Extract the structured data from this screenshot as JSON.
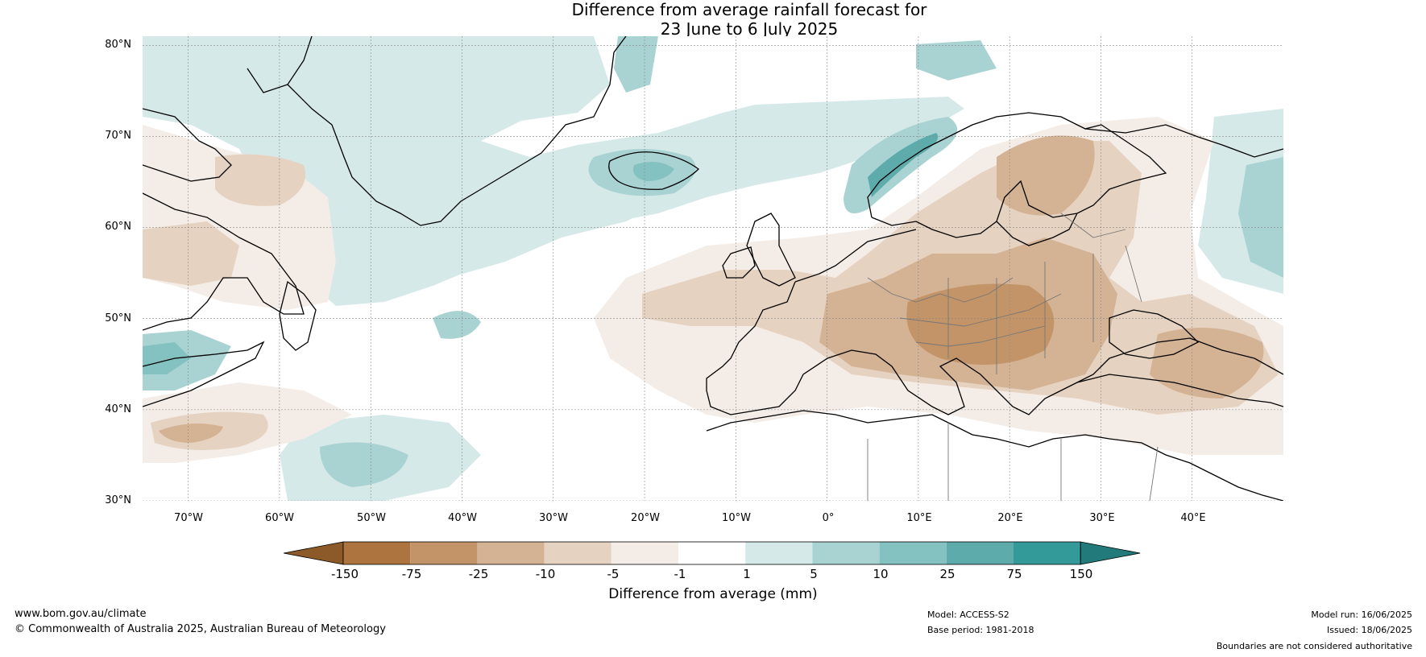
{
  "title": {
    "line1": "Difference from average rainfall forecast for",
    "line2": "23 June to 6 July 2025"
  },
  "map": {
    "lon_range": [
      -75,
      50
    ],
    "lat_range": [
      30,
      81
    ],
    "lat_labels": [
      "80°N",
      "70°N",
      "60°N",
      "50°N",
      "40°N",
      "30°N"
    ],
    "lat_values": [
      80,
      70,
      60,
      50,
      40,
      30
    ],
    "lon_labels": [
      "70°W",
      "60°W",
      "50°W",
      "40°W",
      "30°W",
      "20°W",
      "10°W",
      "0°",
      "10°E",
      "20°E",
      "30°E",
      "40°E"
    ],
    "lon_values": [
      -70,
      -60,
      -50,
      -40,
      -30,
      -20,
      -10,
      0,
      10,
      20,
      30,
      40
    ]
  },
  "colorbar": {
    "tick_labels": [
      "-150",
      "-75",
      "-25",
      "-10",
      "-5",
      "-1",
      "1",
      "5",
      "10",
      "25",
      "75",
      "150"
    ],
    "colors": [
      "#8c5a28",
      "#ad7440",
      "#c29467",
      "#d4b294",
      "#e6d2c1",
      "#f4ece6",
      "#ffffff",
      "#d6e9e9",
      "#a9d3d3",
      "#84c1c1",
      "#5eabab",
      "#349999",
      "#227a7a"
    ],
    "title": "Difference from average (mm)"
  },
  "footer": {
    "website": "www.bom.gov.au/climate",
    "copyright": "© Commonwealth of Australia 2025, Australian Bureau of Meteorology",
    "model": "Model: ACCESS-S2",
    "base_period": "Base period: 1981-2018",
    "model_run": "Model run: 16/06/2025",
    "issued": "Issued: 18/06/2025",
    "boundaries_note": "Boundaries are not considered authoritative"
  }
}
